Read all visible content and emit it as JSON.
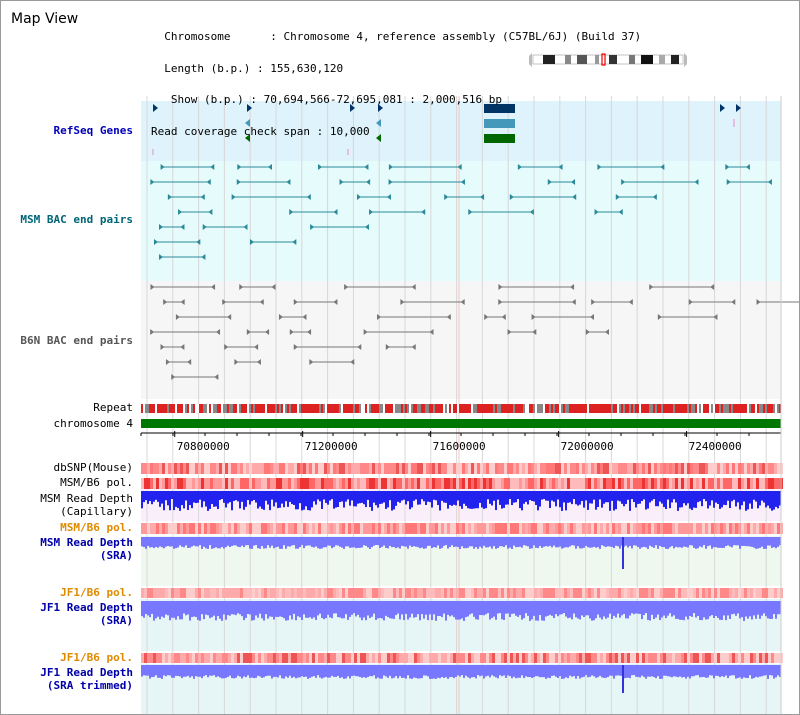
{
  "view": {
    "title": "Map View"
  },
  "info": {
    "chromosome_label": "Chromosome",
    "chromosome_value": "Chromosome 4, reference assembly (C57BL/6J) (Build 37)",
    "length_label": "  Length (b.p.)",
    "length_value": "155,630,120",
    "show_label": "   Show (b.p.)",
    "show_value": "70,694,566-72,695,081 : 2,000,516 bp",
    "coverage_label": "Read coverage check span",
    "coverage_value": "10,000"
  },
  "tracks": {
    "refseq": "RefSeq Genes",
    "msm_bac": "MSM BAC end pairs",
    "b6n_bac": "B6N BAC end pairs",
    "repeat": "Repeat",
    "chromosome": "chromosome 4",
    "dbsnp": "dbSNP(Mouse)",
    "msm_b6_pol_1": "MSM/B6 pol.",
    "msm_read_depth_cap_1": "MSM Read Depth",
    "msm_read_depth_cap_2": "(Capillary)",
    "msm_b6_pol_2": "MSM/B6 pol.",
    "msm_read_depth_sra_1": "MSM Read Depth",
    "msm_read_depth_sra_2": "(SRA)",
    "jf1_b6_pol_1": "JF1/B6 pol.",
    "jf1_read_depth_sra_1": "JF1 Read Depth",
    "jf1_read_depth_sra_2": "(SRA)",
    "jf1_b6_pol_2": "JF1/B6 pol.",
    "jf1_read_depth_trim_1": "JF1 Read Depth",
    "jf1_read_depth_trim_2": "(SRA trimmed)"
  },
  "ruler": {
    "ticks": [
      "70800000",
      "71200000",
      "71600000",
      "72000000",
      "72400000"
    ],
    "tick_values": [
      70800000,
      71200000,
      71600000,
      72000000,
      72400000
    ],
    "start": 70694566,
    "end": 72695081
  },
  "colors": {
    "refseq_bg": "#def3fb",
    "msm_bg": "#e6fbfb",
    "b6n_bg": "#f6f6f6",
    "gene_dark": "#003366",
    "gene_mid": "#4499bb",
    "gene_green": "#006600",
    "chrom_green": "#007700",
    "repeat_red": "#dd2222",
    "depth_blue": "#2222ee",
    "depth_light_blue": "#7777ff",
    "label_orange": "#e08a00"
  }
}
